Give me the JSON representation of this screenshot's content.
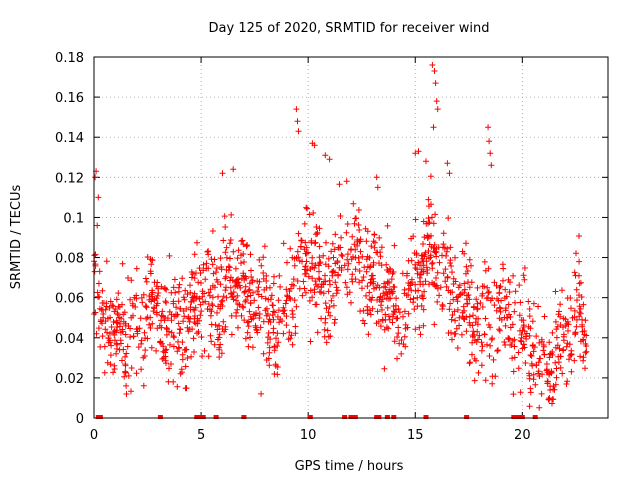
{
  "chart_data": {
    "type": "scatter",
    "title": "Day 125 of 2020, SRMTID for receiver wind",
    "xlabel": "GPS time / hours",
    "ylabel": "SRMTID / TECUs",
    "xlim": [
      0,
      24
    ],
    "ylim": [
      0,
      0.18
    ],
    "xticks": [
      0,
      5,
      10,
      15,
      20
    ],
    "xtick_labels": [
      "0",
      "5",
      "10",
      "15",
      "20"
    ],
    "yticks": [
      0,
      0.02,
      0.04,
      0.06,
      0.08,
      0.1,
      0.12,
      0.14,
      0.16,
      0.18
    ],
    "ytick_labels": [
      "0",
      "0.02",
      "0.04",
      "0.06",
      "0.08",
      "0.1",
      "0.12",
      "0.14",
      "0.16",
      "0.18"
    ],
    "grid": true,
    "marker": "plus",
    "color": "#ff0000",
    "series": [
      {
        "name": "SRMTID",
        "trend": [
          [
            0.0,
            0.065
          ],
          [
            0.5,
            0.045
          ],
          [
            1.0,
            0.042
          ],
          [
            1.5,
            0.04
          ],
          [
            2.0,
            0.048
          ],
          [
            2.5,
            0.06
          ],
          [
            3.0,
            0.05
          ],
          [
            3.5,
            0.042
          ],
          [
            4.0,
            0.045
          ],
          [
            4.5,
            0.05
          ],
          [
            5.0,
            0.062
          ],
          [
            5.5,
            0.06
          ],
          [
            6.0,
            0.058
          ],
          [
            6.5,
            0.07
          ],
          [
            7.0,
            0.062
          ],
          [
            7.5,
            0.058
          ],
          [
            8.0,
            0.05
          ],
          [
            8.5,
            0.045
          ],
          [
            9.0,
            0.055
          ],
          [
            9.5,
            0.075
          ],
          [
            10.0,
            0.08
          ],
          [
            10.5,
            0.07
          ],
          [
            11.0,
            0.065
          ],
          [
            11.5,
            0.075
          ],
          [
            12.0,
            0.082
          ],
          [
            12.5,
            0.075
          ],
          [
            13.0,
            0.07
          ],
          [
            13.5,
            0.065
          ],
          [
            14.0,
            0.06
          ],
          [
            14.5,
            0.055
          ],
          [
            15.0,
            0.07
          ],
          [
            15.5,
            0.08
          ],
          [
            16.0,
            0.075
          ],
          [
            16.5,
            0.065
          ],
          [
            17.0,
            0.06
          ],
          [
            17.5,
            0.055
          ],
          [
            18.0,
            0.05
          ],
          [
            18.5,
            0.048
          ],
          [
            19.0,
            0.05
          ],
          [
            19.5,
            0.045
          ],
          [
            20.0,
            0.042
          ],
          [
            20.5,
            0.035
          ],
          [
            21.0,
            0.03
          ],
          [
            21.5,
            0.03
          ],
          [
            22.0,
            0.04
          ],
          [
            22.5,
            0.055
          ],
          [
            23.0,
            0.04
          ]
        ],
        "n_points": 1500,
        "spread": 0.013
      }
    ],
    "outliers": [
      [
        0.05,
        0.12
      ],
      [
        0.1,
        0.123
      ],
      [
        0.15,
        0.096
      ],
      [
        0.2,
        0.11
      ],
      [
        9.45,
        0.154
      ],
      [
        9.5,
        0.148
      ],
      [
        9.55,
        0.143
      ],
      [
        10.2,
        0.137
      ],
      [
        10.3,
        0.136
      ],
      [
        10.8,
        0.131
      ],
      [
        11.0,
        0.129
      ],
      [
        15.0,
        0.132
      ],
      [
        15.15,
        0.133
      ],
      [
        15.5,
        0.128
      ],
      [
        15.8,
        0.176
      ],
      [
        15.9,
        0.173
      ],
      [
        15.95,
        0.167
      ],
      [
        16.0,
        0.158
      ],
      [
        16.05,
        0.154
      ],
      [
        15.85,
        0.145
      ],
      [
        16.5,
        0.127
      ],
      [
        16.6,
        0.122
      ],
      [
        18.4,
        0.145
      ],
      [
        18.45,
        0.138
      ],
      [
        18.5,
        0.132
      ],
      [
        18.55,
        0.126
      ],
      [
        6.0,
        0.122
      ],
      [
        6.5,
        0.124
      ],
      [
        11.8,
        0.118
      ],
      [
        13.2,
        0.12
      ],
      [
        13.25,
        0.115
      ],
      [
        21.25,
        0.009
      ],
      [
        20.9,
        0.012
      ],
      [
        7.8,
        0.012
      ],
      [
        1.5,
        0.016
      ],
      [
        3.7,
        0.018
      ]
    ],
    "baseline_markers_x": [
      0.2,
      0.3,
      3.1,
      4.8,
      5.0,
      5.1,
      5.7,
      7.0,
      10.1,
      11.7,
      12.0,
      12.2,
      13.2,
      13.3,
      13.7,
      14.0,
      15.5,
      17.4,
      19.6,
      19.8,
      20.0,
      20.6
    ]
  }
}
